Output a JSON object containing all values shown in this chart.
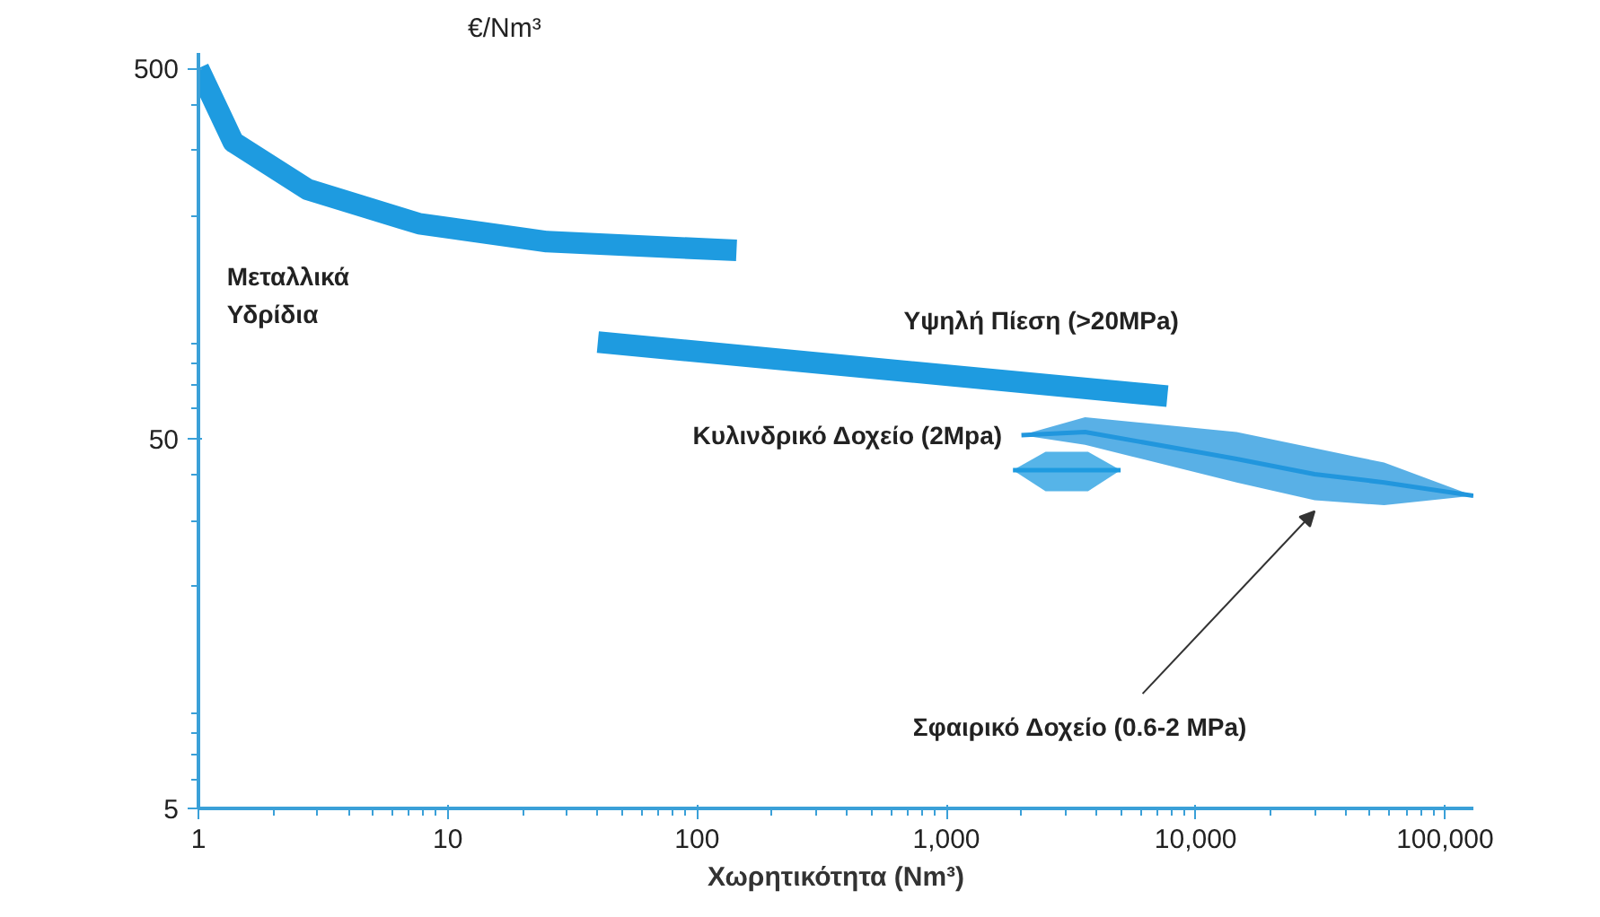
{
  "chart_data": {
    "type": "line",
    "xlabel": "Χωρητικότητα (Nm³)",
    "ylabel": "€/Nm³",
    "log": "xy",
    "grid": false,
    "legend": false,
    "xlim": [
      1,
      130000
    ],
    "ylim": [
      5,
      550
    ],
    "xticks": [
      1,
      10,
      100,
      {
        "value": 1000,
        "label": "1,000"
      },
      {
        "value": 10000,
        "label": "10,000"
      },
      {
        "value": 100000,
        "label": "100,000"
      }
    ],
    "yticks": [
      5,
      50,
      500
    ],
    "series": [
      {
        "name": "Μεταλλικά\nΥδρίδια",
        "color": "#1e9be0",
        "x": [
          1,
          1.38,
          2.75,
          7.7,
          25,
          144
        ],
        "values": [
          500,
          316,
          235,
          190,
          170,
          161
        ]
      },
      {
        "name": "Υψηλή Πίεση (>20MPa)",
        "color": "#1e9be0",
        "x": [
          40,
          7700
        ],
        "values": [
          91,
          65
        ]
      },
      {
        "name": "Κυλινδρικό Δοχείο (2Mpa)",
        "color": "#1e9be0",
        "x": [
          1850,
          2500,
          3700,
          5000
        ],
        "values": [
          41,
          41,
          41,
          41
        ],
        "lower": [
          41,
          36,
          36,
          41
        ],
        "upper": [
          41,
          46,
          46,
          41
        ]
      },
      {
        "name": "Σφαιρικό Δοχείο (0.6-2 MPa)",
        "color": "#2196dd",
        "x": [
          2000,
          3600,
          14600,
          30000,
          57000,
          130000
        ],
        "values": [
          51,
          52,
          44,
          40,
          38,
          35
        ],
        "lower": [
          51,
          48,
          38,
          34,
          33,
          35
        ],
        "upper": [
          51,
          57,
          52,
          47,
          43,
          35
        ]
      }
    ]
  }
}
